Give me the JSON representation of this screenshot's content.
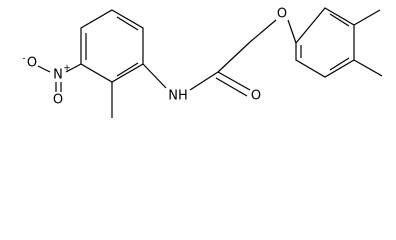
{
  "labels": {
    "ether_oxygen": "O",
    "carbonyl_oxygen": "O",
    "amide_nitrogen": "NH",
    "nitro_nitrogen": "N",
    "nitro_charge": "+",
    "nitro_oxygen_anion": "O",
    "anion_charge": "-",
    "nitro_oxygen": "O"
  }
}
